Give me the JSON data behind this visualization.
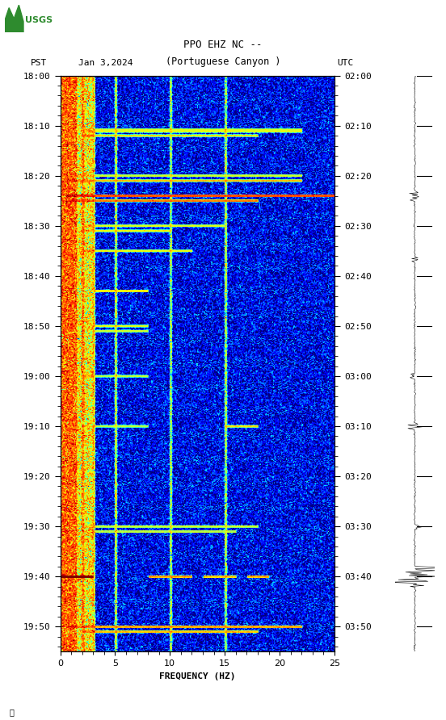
{
  "title_line1": "PPO EHZ NC --",
  "title_line2": "(Portuguese Canyon )",
  "date_label": "Jan 3,2024",
  "tz_left": "PST",
  "tz_right": "UTC",
  "freq_min": 0,
  "freq_max": 25,
  "xlabel": "FREQUENCY (HZ)",
  "ytick_pst": [
    "18:00",
    "18:10",
    "18:20",
    "18:30",
    "18:40",
    "18:50",
    "19:00",
    "19:10",
    "19:20",
    "19:30",
    "19:40",
    "19:50"
  ],
  "ytick_utc": [
    "02:00",
    "02:10",
    "02:20",
    "02:30",
    "02:40",
    "02:50",
    "03:00",
    "03:10",
    "03:20",
    "03:30",
    "03:40",
    "03:50"
  ],
  "ytick_positions": [
    0,
    10,
    20,
    30,
    40,
    50,
    60,
    70,
    80,
    90,
    100,
    110
  ],
  "total_minutes": 115,
  "background_color": "#ffffff",
  "colormap": "jet",
  "fig_width": 5.52,
  "fig_height": 8.92
}
